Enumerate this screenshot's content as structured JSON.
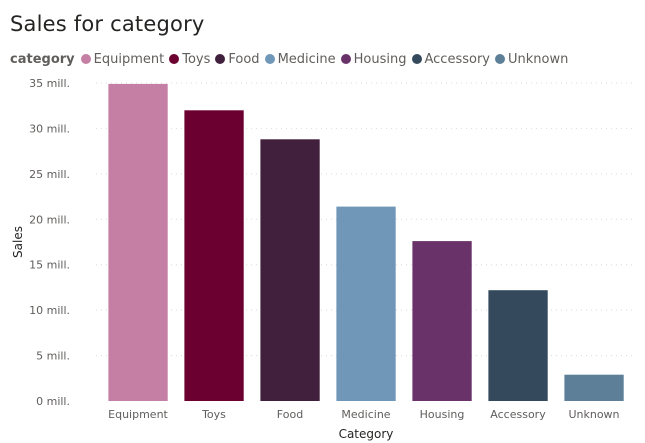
{
  "chart_data": {
    "type": "bar",
    "title": "Sales for category",
    "legend": {
      "title": "category",
      "placement": "top-left",
      "entries": [
        "Equipment",
        "Toys",
        "Food",
        "Medicine",
        "Housing",
        "Accessory",
        "Unknown"
      ]
    },
    "xlabel": "Category",
    "ylabel": "Sales",
    "categories": [
      "Equipment",
      "Toys",
      "Food",
      "Medicine",
      "Housing",
      "Accessory",
      "Unknown"
    ],
    "values": [
      34900000,
      32000000,
      28800000,
      21400000,
      17600000,
      12200000,
      2900000
    ],
    "colors": [
      "#C57FA4",
      "#6B0030",
      "#41203D",
      "#7097B8",
      "#69336A",
      "#344A5C",
      "#5E7F98"
    ],
    "ylim": [
      0,
      35000000
    ],
    "yticks": [
      0,
      5000000,
      10000000,
      15000000,
      20000000,
      25000000,
      30000000,
      35000000
    ],
    "ytick_labels": [
      "0 mill.",
      "5 mill.",
      "10 mill.",
      "15 mill.",
      "20 mill.",
      "25 mill.",
      "30 mill.",
      "35 mill."
    ],
    "grid": true
  }
}
